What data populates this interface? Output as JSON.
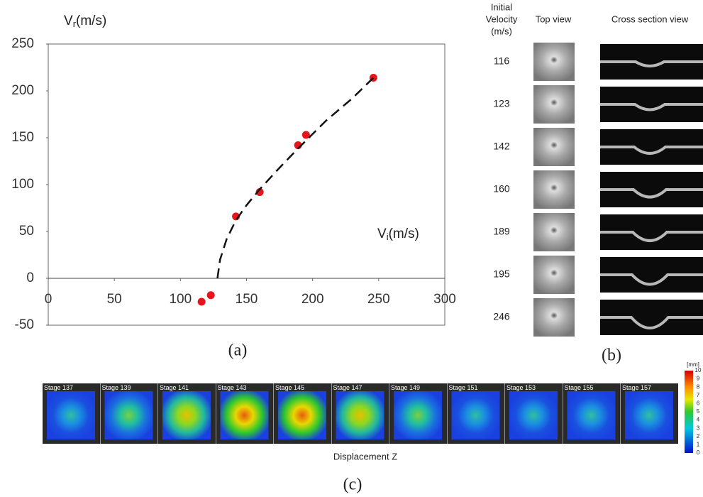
{
  "chart_data": {
    "type": "scatter",
    "y_label": {
      "main": "V",
      "sub": "r",
      "rest": "(m/s)"
    },
    "x_label": {
      "main": "V",
      "sub": "i",
      "rest": "(m/s)"
    },
    "xlim": [
      0,
      300
    ],
    "xticks": [
      0,
      50,
      100,
      150,
      200,
      250,
      300
    ],
    "ylim": [
      -50,
      250
    ],
    "yticks": [
      -50,
      0,
      50,
      100,
      150,
      200,
      250
    ],
    "series": [
      {
        "color": "#e8141b",
        "x": [
          116,
          123,
          142,
          160,
          189,
          195,
          246
        ],
        "values": [
          -25,
          -18,
          66,
          92,
          142,
          153,
          214
        ]
      },
      {
        "color": "#111111",
        "style": "dashed",
        "x": [
          128,
          130,
          135,
          142,
          150,
          160,
          175,
          190,
          210,
          230,
          246
        ],
        "values": [
          0,
          20,
          42,
          62,
          78,
          95,
          118,
          140,
          168,
          192,
          214
        ]
      }
    ],
    "panel_label": "(a)"
  },
  "table": {
    "header": {
      "velocity": [
        "Initial",
        "Velocity",
        "(m/s)"
      ],
      "top": "Top view",
      "cross": "Cross section view"
    },
    "rows": [
      "116",
      "123",
      "142",
      "160",
      "189",
      "195",
      "246"
    ],
    "panel_label": "(b)"
  },
  "strip": {
    "stages": [
      "Stage 137",
      "Stage 139",
      "Stage 141",
      "Stage 143",
      "Stage 145",
      "Stage 147",
      "Stage 149",
      "Stage 151",
      "Stage 153",
      "Stage 155",
      "Stage 157"
    ],
    "caption": "Displacement Z",
    "colorbar_unit": "[mm]",
    "colorbar_labels": [
      "10",
      "9",
      "8",
      "7",
      "6",
      "5",
      "4",
      "3",
      "2",
      "1",
      "0"
    ],
    "panel_label": "(c)"
  }
}
